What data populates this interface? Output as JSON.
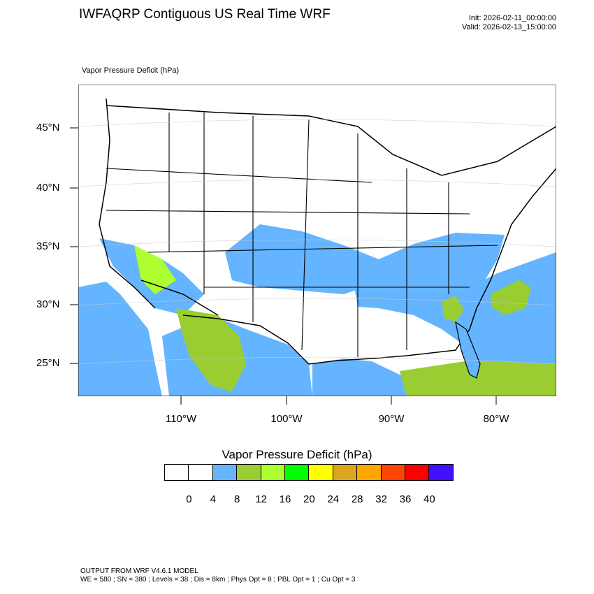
{
  "header": {
    "title": "IWFAQRP Contiguous US Real Time WRF",
    "init": "Init: 2026-02-11_00:00:00",
    "valid": "Valid: 2026-02-13_15:00:00"
  },
  "map": {
    "field_label": "Vapor Pressure Deficit   (hPa)",
    "lat_labels": [
      "45°N",
      "40°N",
      "35°N",
      "30°N",
      "25°N"
    ],
    "lon_labels": [
      "110°W",
      "100°W",
      "90°W",
      "80°W"
    ],
    "colors": {
      "ocean_light": "#64b4ff",
      "low_band": "#64b4ff",
      "band_8_12": "#9acd32",
      "band_12_16": "#adff2f",
      "county_lines": "#000000"
    }
  },
  "colorbar": {
    "title": "Vapor Pressure Deficit  (hPa)",
    "colors": [
      "#ffffff",
      "#ffffff",
      "#64b4ff",
      "#9acd32",
      "#adff2f",
      "#00ff00",
      "#ffff00",
      "#daa520",
      "#ffa500",
      "#ff4500",
      "#ff0000",
      "#4010ff"
    ],
    "ticks": [
      "0",
      "4",
      "8",
      "12",
      "16",
      "20",
      "24",
      "28",
      "32",
      "36",
      "40"
    ]
  },
  "footer": {
    "line1": "OUTPUT FROM WRF V4.6.1 MODEL",
    "line2": "WE = 580 ; SN = 380 ; Levels = 38 ; Dis = 8km ; Phys Opt = 8 ; PBL Opt = 1 ; Cu Opt = 3"
  }
}
